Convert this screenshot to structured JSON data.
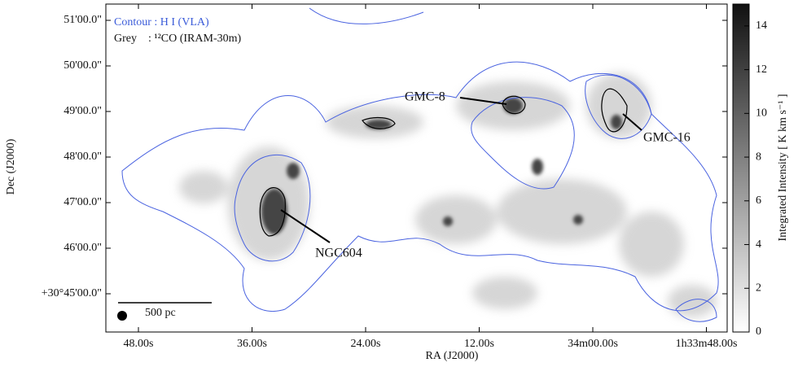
{
  "chart_data": {
    "type": "image",
    "xlabel": "RA (J2000)",
    "ylabel": "Dec (J2000)",
    "xtick_labels": [
      "48.00s",
      "36.00s",
      "24.00s",
      "12.00s",
      "34m00.00s",
      "1h33m48.00s"
    ],
    "ytick_labels": [
      "51'00.0\"",
      "50'00.0\"",
      "49'00.0\"",
      "48'00.0\"",
      "47'00.0\"",
      "46'00.0\"",
      "+30°45'00.0\""
    ],
    "colorbar": {
      "label": "Integrated Intensity [ K km s⁻¹ ]",
      "lim": [
        0,
        15
      ],
      "ticks": [
        0,
        2,
        4,
        6,
        8,
        10,
        12,
        14
      ]
    },
    "legend": [
      "Contour : H I  (VLA)",
      "Grey    : ¹²CO (IRAM-30m)"
    ],
    "annotations": [
      "GMC-8",
      "GMC-16",
      "NGC604"
    ],
    "scale_bar": "500 pc"
  }
}
